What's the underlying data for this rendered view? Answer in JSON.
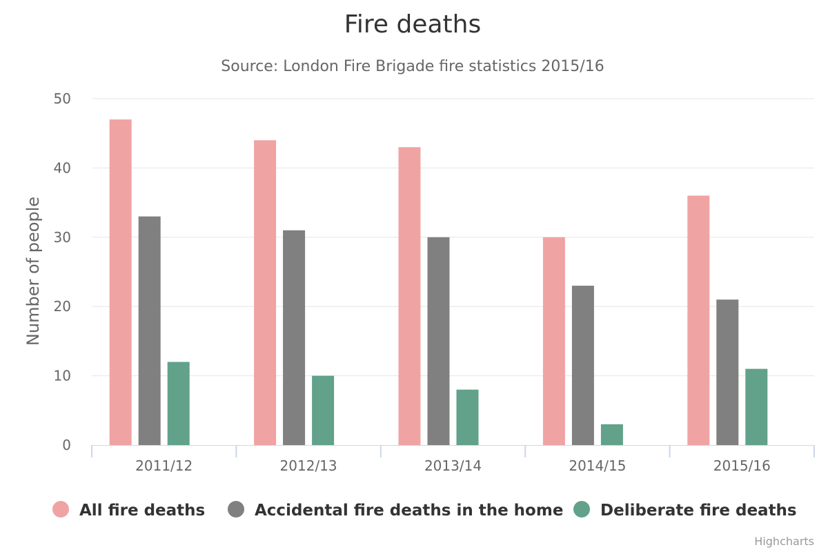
{
  "chart_data": {
    "type": "bar",
    "title": "Fire deaths",
    "subtitle": "Source: London Fire Brigade fire statistics 2015/16",
    "xlabel": "",
    "ylabel": "Number of people",
    "ylim": [
      0,
      50
    ],
    "yticks": [
      0,
      10,
      20,
      30,
      40,
      50
    ],
    "grid": true,
    "legend_position": "bottom-center",
    "categories": [
      "2011/12",
      "2012/13",
      "2013/14",
      "2014/15",
      "2015/16"
    ],
    "series": [
      {
        "name": "All fire deaths",
        "color": "#f0a3a3",
        "values": [
          47,
          44,
          43,
          30,
          36
        ]
      },
      {
        "name": "Accidental fire deaths in the home",
        "color": "#808080",
        "values": [
          33,
          31,
          30,
          23,
          21
        ]
      },
      {
        "name": "Deliberate fire deaths",
        "color": "#62a18a",
        "values": [
          12,
          10,
          8,
          3,
          11
        ]
      }
    ]
  },
  "credit": "Highcharts"
}
